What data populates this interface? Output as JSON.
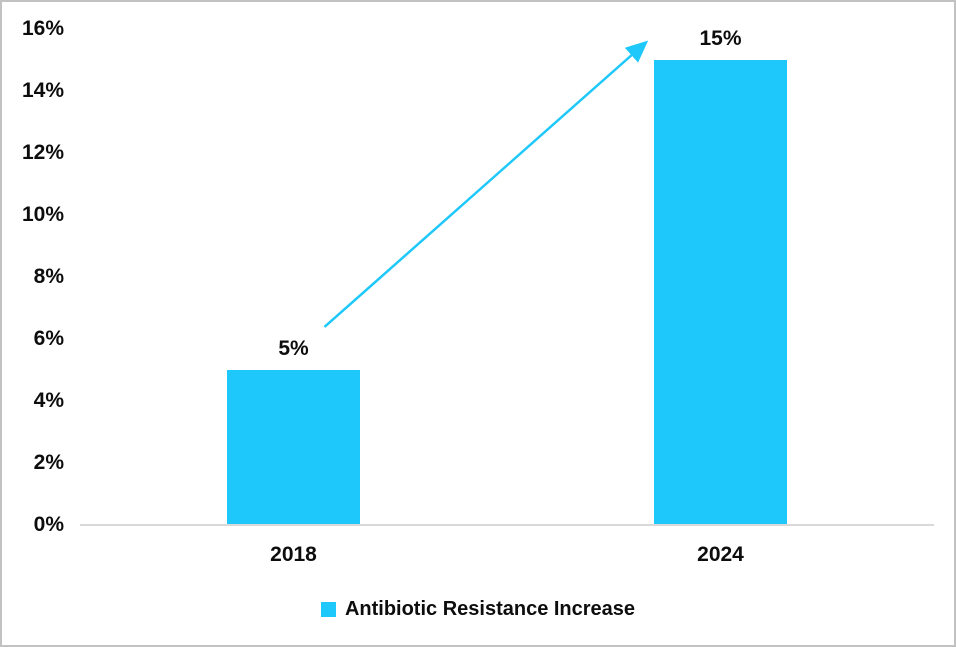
{
  "chart_data": {
    "type": "bar",
    "title": "",
    "categories": [
      "2018",
      "2024"
    ],
    "values": [
      5,
      15
    ],
    "data_labels": [
      "5%",
      "15%"
    ],
    "series": [
      {
        "name": "Antibiotic Resistance Increase",
        "values": [
          5,
          15
        ]
      }
    ],
    "xlabel": "",
    "ylabel": "",
    "ylim": [
      0,
      16
    ],
    "yticks": [
      0,
      2,
      4,
      6,
      8,
      10,
      12,
      14,
      16
    ],
    "ytick_labels": [
      "0%",
      "2%",
      "4%",
      "6%",
      "8%",
      "10%",
      "12%",
      "14%",
      "16%"
    ],
    "grid": false,
    "legend_position": "bottom",
    "annotation": {
      "type": "arrow",
      "from": "top of 2018 bar (5%)",
      "to": "top of 2024 bar (15%)"
    }
  },
  "legend": {
    "label": "Antibiotic Resistance Increase"
  },
  "colors": {
    "bar": "#1ec8fa",
    "arrow": "#1ec8fa",
    "axis_line": "#d9d9d9",
    "text": "#0d0d0d",
    "frame_border": "#c2c2c2",
    "background": "#ffffff"
  }
}
